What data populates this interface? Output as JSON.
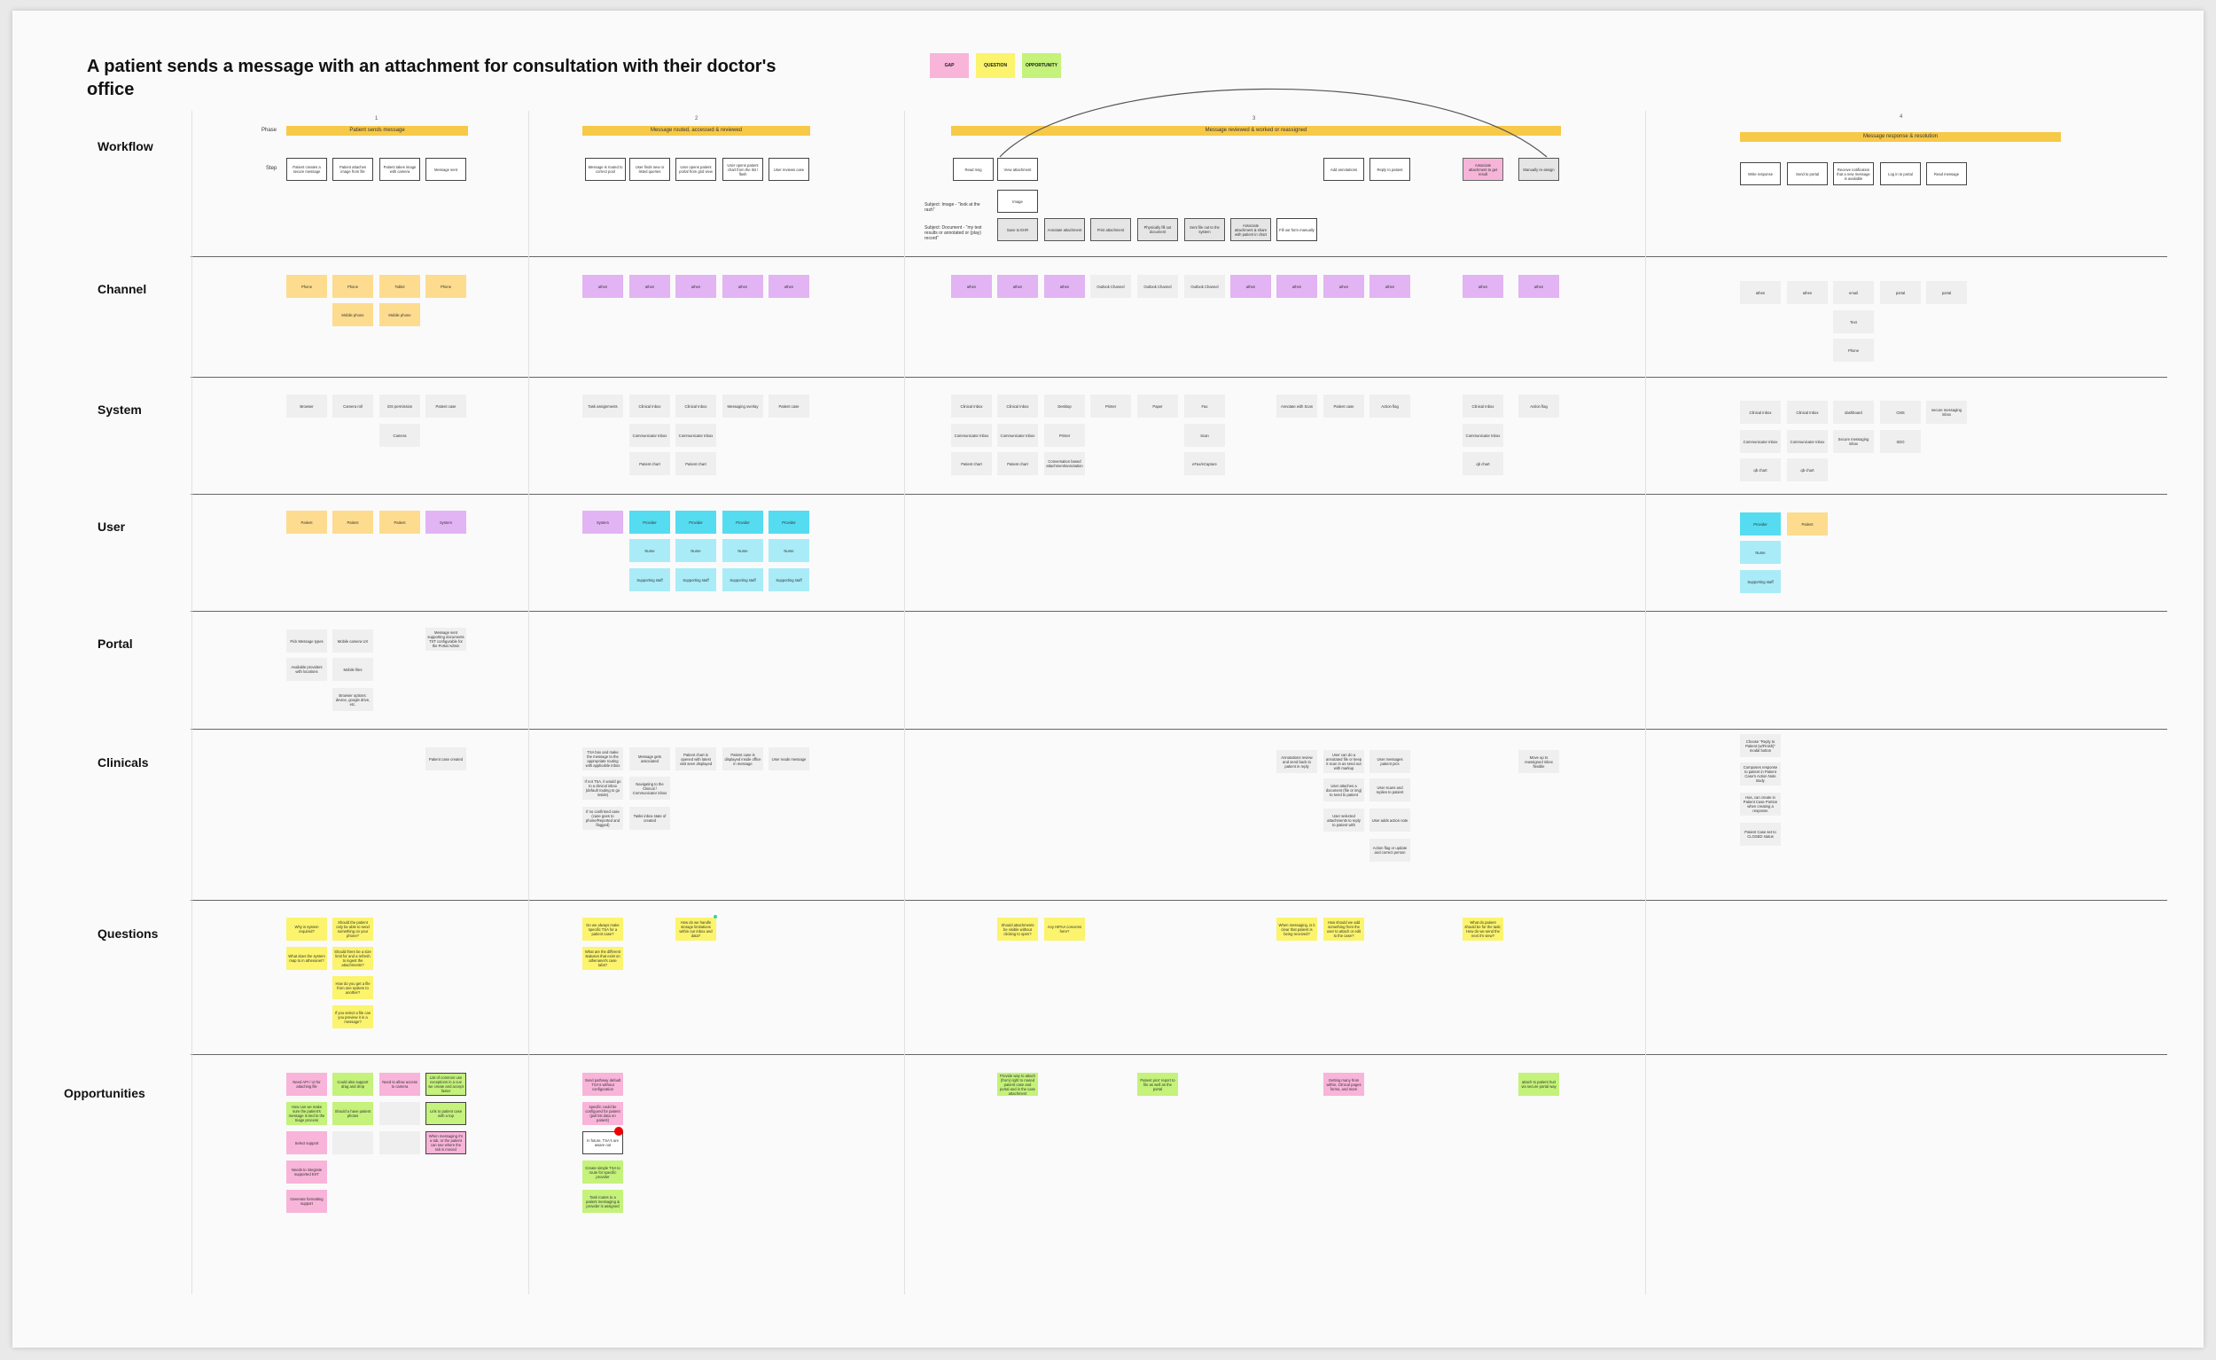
{
  "title": "A patient sends a message with an attachment for consultation with their doctor's office",
  "legend": [
    {
      "label": "GAP",
      "color": "#f8b4d9"
    },
    {
      "label": "QUESTION",
      "color": "#fbf46c"
    },
    {
      "label": "OPPORTUNITY",
      "color": "#c4f27a"
    }
  ],
  "rows": [
    "Workflow",
    "Channel",
    "System",
    "User",
    "Portal",
    "Clinicals",
    "Questions",
    "Opportunities"
  ],
  "labels": {
    "phase": "Phase",
    "step": "Step"
  },
  "phase_numbers": [
    "1",
    "2",
    "3",
    "4"
  ],
  "phases": [
    "Patient sends message",
    "Message routed, accessed & reviewed",
    "Message reviewed & worked or reassigned",
    "Message response & resolution"
  ],
  "subject_labels": [
    "Subject: Image - \"look at the rash\"",
    "Subject: Document - \"my test results or annotated or (play) record\""
  ],
  "cards": {
    "wf_p1": [
      "Patient creates a secure message",
      "Patient attaches image from file",
      "Patient takes image with camera",
      "Message sent"
    ],
    "wf_p2": [
      "Message is routed to correct pool",
      "User finds new or listed queries",
      "User opens patient portal from grid view",
      "User opens patient chart from the list / flash",
      "User reviews case"
    ],
    "wf_p3": [
      "Read msg",
      "View attachment",
      "Image",
      "Save to EHR",
      "Annotate attachment",
      "Print attachment",
      "Physically fill out document",
      "Sent file out to the system",
      "Associate attachment & share with patient in chart",
      "Fill out form manually",
      "Add annotations",
      "Reply to patient",
      "Associate attachment to get result",
      "Manually re-assign"
    ],
    "wf_p4": [
      "Write response",
      "Send to portal",
      "Receive notification that a new message is available",
      "Log in to portal",
      "Read message"
    ],
    "ch_p1": [
      "Phone",
      "Phone",
      "Mobile phone",
      "Tablet",
      "Mobile phone",
      "Phone"
    ],
    "ch_p2": [
      "athen",
      "athen",
      "athen",
      "athen",
      "athen"
    ],
    "ch_p3": [
      "athen",
      "athen",
      "athen",
      "Outlook Channel",
      "Outlook Channel",
      "Outlook Channel",
      "athen",
      "athen",
      "athen",
      "athen",
      "athen",
      "athen"
    ],
    "ch_p4": [
      "athen",
      "athen",
      "email",
      "portal",
      "portal",
      "Text",
      "Phone"
    ],
    "sys_p1": [
      "Browser",
      "Camera roll",
      "iOS permission",
      "Patient case",
      "Camera"
    ],
    "sys_p2": [
      "Task assignments",
      "Clinical Inbox",
      "Communicator Inbox",
      "Patient chart",
      "Clinical Inbox",
      "Communicator Inbox",
      "Patient chart",
      "Messaging overlay",
      "Patient case"
    ],
    "sys_p3": [
      "Clinical Inbox",
      "Communicator Inbox",
      "Patient chart",
      "Clinical Inbox",
      "Communicator Inbox",
      "Patient chart",
      "Desktop",
      "Printer",
      "Conversation based attachment/annotation",
      "Printer",
      "Paper",
      "Fax",
      "Scan",
      "eFax/eCapture",
      "Annotate with Scan",
      "Patient case",
      "Action flag",
      "Clinical Inbox",
      "Communicator Inbox",
      "qb chart",
      "Action flag"
    ],
    "sys_p4": [
      "Clinical Inbox",
      "Communicator Inbox",
      "qb chart",
      "Clinical Inbox",
      "Communicator Inbox",
      "qb chart",
      "dashboard",
      "Secure messaging inbox",
      "CMS",
      "SDO",
      "secure messaging inbox"
    ],
    "user_p1": [
      "Patient",
      "Patient",
      "Patient",
      "System"
    ],
    "user_p2": [
      "System",
      "Provider",
      "Nurse",
      "Supporting staff",
      "Provider",
      "Nurse",
      "Supporting staff",
      "Provider",
      "Nurse",
      "Supporting staff",
      "Provider",
      "Nurse",
      "Supporting staff"
    ],
    "user_p4": [
      "Provider",
      "Nurse",
      "Supporting staff",
      "Patient"
    ],
    "portal_p1": [
      "Pick Message types",
      "Available providers with locations",
      "Mobile camera UX",
      "Mobile files",
      "Browser options: device, google drive, etc.",
      "Message sent supporting documents TXT configurable for the Portal Admin"
    ],
    "clin_p1": [
      "Patient case created"
    ],
    "clin_p2": [
      "TSA box and make the message to the appropriate routing with applicable inbox",
      "If not TSA, it would go to a clinical inbox (default routing to go inside)",
      "If no confirmed case (case goes to phone/Reported and flagged)",
      "Message gets associated",
      "Navigating to the Clinical / Communicator inbox",
      "Tasks inbox state of created",
      "Patient chart is opened with latest visit seen displayed",
      "Patient case is displayed inside office in message",
      "User reads message"
    ],
    "clin_p3": [
      "Annotations review and send back to patient in reply",
      "User can do a annotated file or keep it scan in as send out with markup",
      "User attaches a document (file or img) to send to patient",
      "User selected attachments to reply to patient with",
      "User messages patient pics",
      "User scans and replies to patient",
      "User adds action note",
      "Action flag or update and correct person",
      "Move up to reassigned inbox flexible"
    ],
    "clin_p4": [
      "Choose \"Reply to Patient (w/Finish)\" modal button",
      "Composes response to patient in Patient Case's Action Note Body",
      "Has, can create in Patient Case Portion when creating a response",
      "Patient Case set to CLOSED status"
    ],
    "q_p1": [
      "Why is system required?",
      "What does the system map to in athenanet?",
      "Should the patient only be able to send something on your phone?",
      "Should there be a size limit for and a refresh to ingest the attachments?",
      "How do you get a file from one system to another?",
      "If you select a file can you preview it in a message?"
    ],
    "q_p2": [
      "Do we always make specific TSA for a patient case?",
      "What are the different statuses that exist on athenanet's case tabs?",
      "How do we handle storage limitations within our inbox and data?"
    ],
    "q_p3": [
      "Should attachments be visible without clicking to open?",
      "Any HIPAA concerns here?",
      "When messaging, is it clear that patient is being received?",
      "How should we add something from the user to attach or edit to the case?",
      "What do patient should be for the task; How do we send the next it's view?"
    ],
    "opp_p1": [
      "Need API / UI for attaching file",
      "How can we make sure the patient's message is tied to the triage process",
      "Select support",
      "Needs to integrate supported EXT",
      "Generate formatting support",
      "Could also support drag and drop",
      "Should a have patient photos",
      "Need to allow access to camera",
      "List of common use exceptions in a cue we create and accept faster",
      "Link to patient case with a top",
      "When messaging it's a tab, or the patient can see where the tab is moved"
    ],
    "opp_p2": [
      "Send pathway default TSA's without configuration",
      "specific could be configured for patient (pull list data on patient)",
      "In future, TSA's are aware out",
      "Create simple TSA to route for specific provider",
      "Task routes to a patient messaging & provider is assigned"
    ],
    "opp_p3": [
      "Provide way to attach (from) right to routed patient case and portal and in the case attachment",
      "Patient pics' report to file as well as the portal",
      "Getting many from within, Clinical pages forms, and more",
      "attach to patient hurt via secure portal way"
    ]
  }
}
